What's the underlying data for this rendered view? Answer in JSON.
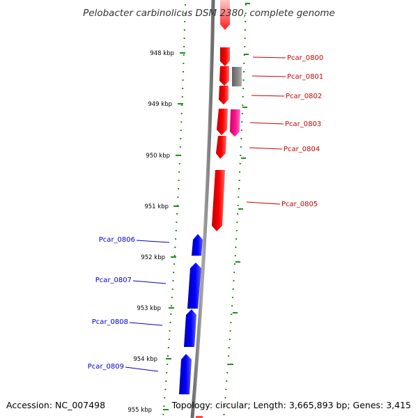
{
  "title": "Pelobacter carbinolicus DSM 2380, complete genome",
  "accession": "Accession: NC_007498",
  "summary": "Topology: circular; Length: 3,665,893 bp; Genes: 3,415",
  "colors": {
    "backbone": "#8c8c8c",
    "forward_gene": "#ff0000",
    "reverse_gene": "#0000ff",
    "gray_gene": "#808080",
    "pink_gene": "#ff1493",
    "dots": "#228b22",
    "red_label": "#cc0000",
    "blue_label": "#0000cc"
  },
  "kbp_labels": [
    "948 kbp",
    "949 kbp",
    "950 kbp",
    "951 kbp",
    "952 kbp",
    "953 kbp",
    "954 kbp",
    "955 kbp"
  ],
  "genes": [
    {
      "type": "forward_gene",
      "label": "",
      "color": "red"
    },
    {
      "type": "forward_gene",
      "label": "Pcar_0800",
      "color": "red"
    },
    {
      "type": "forward_gene",
      "label": "Pcar_0801",
      "color": "red"
    },
    {
      "type": "gray_gene",
      "label": "",
      "color": "gray"
    },
    {
      "type": "forward_gene",
      "label": "Pcar_0802",
      "color": "red"
    },
    {
      "type": "forward_gene",
      "label": "Pcar_0803",
      "color": "red"
    },
    {
      "type": "pink_gene",
      "label": "",
      "color": "pink"
    },
    {
      "type": "forward_gene",
      "label": "Pcar_0804",
      "color": "red"
    },
    {
      "type": "forward_gene",
      "label": "Pcar_0805",
      "color": "red"
    },
    {
      "type": "reverse_gene",
      "label": "Pcar_0806",
      "color": "blue"
    },
    {
      "type": "reverse_gene",
      "label": "Pcar_0807",
      "color": "blue"
    },
    {
      "type": "reverse_gene",
      "label": "Pcar_0808",
      "color": "blue"
    },
    {
      "type": "reverse_gene",
      "label": "Pcar_0809",
      "color": "blue"
    }
  ]
}
